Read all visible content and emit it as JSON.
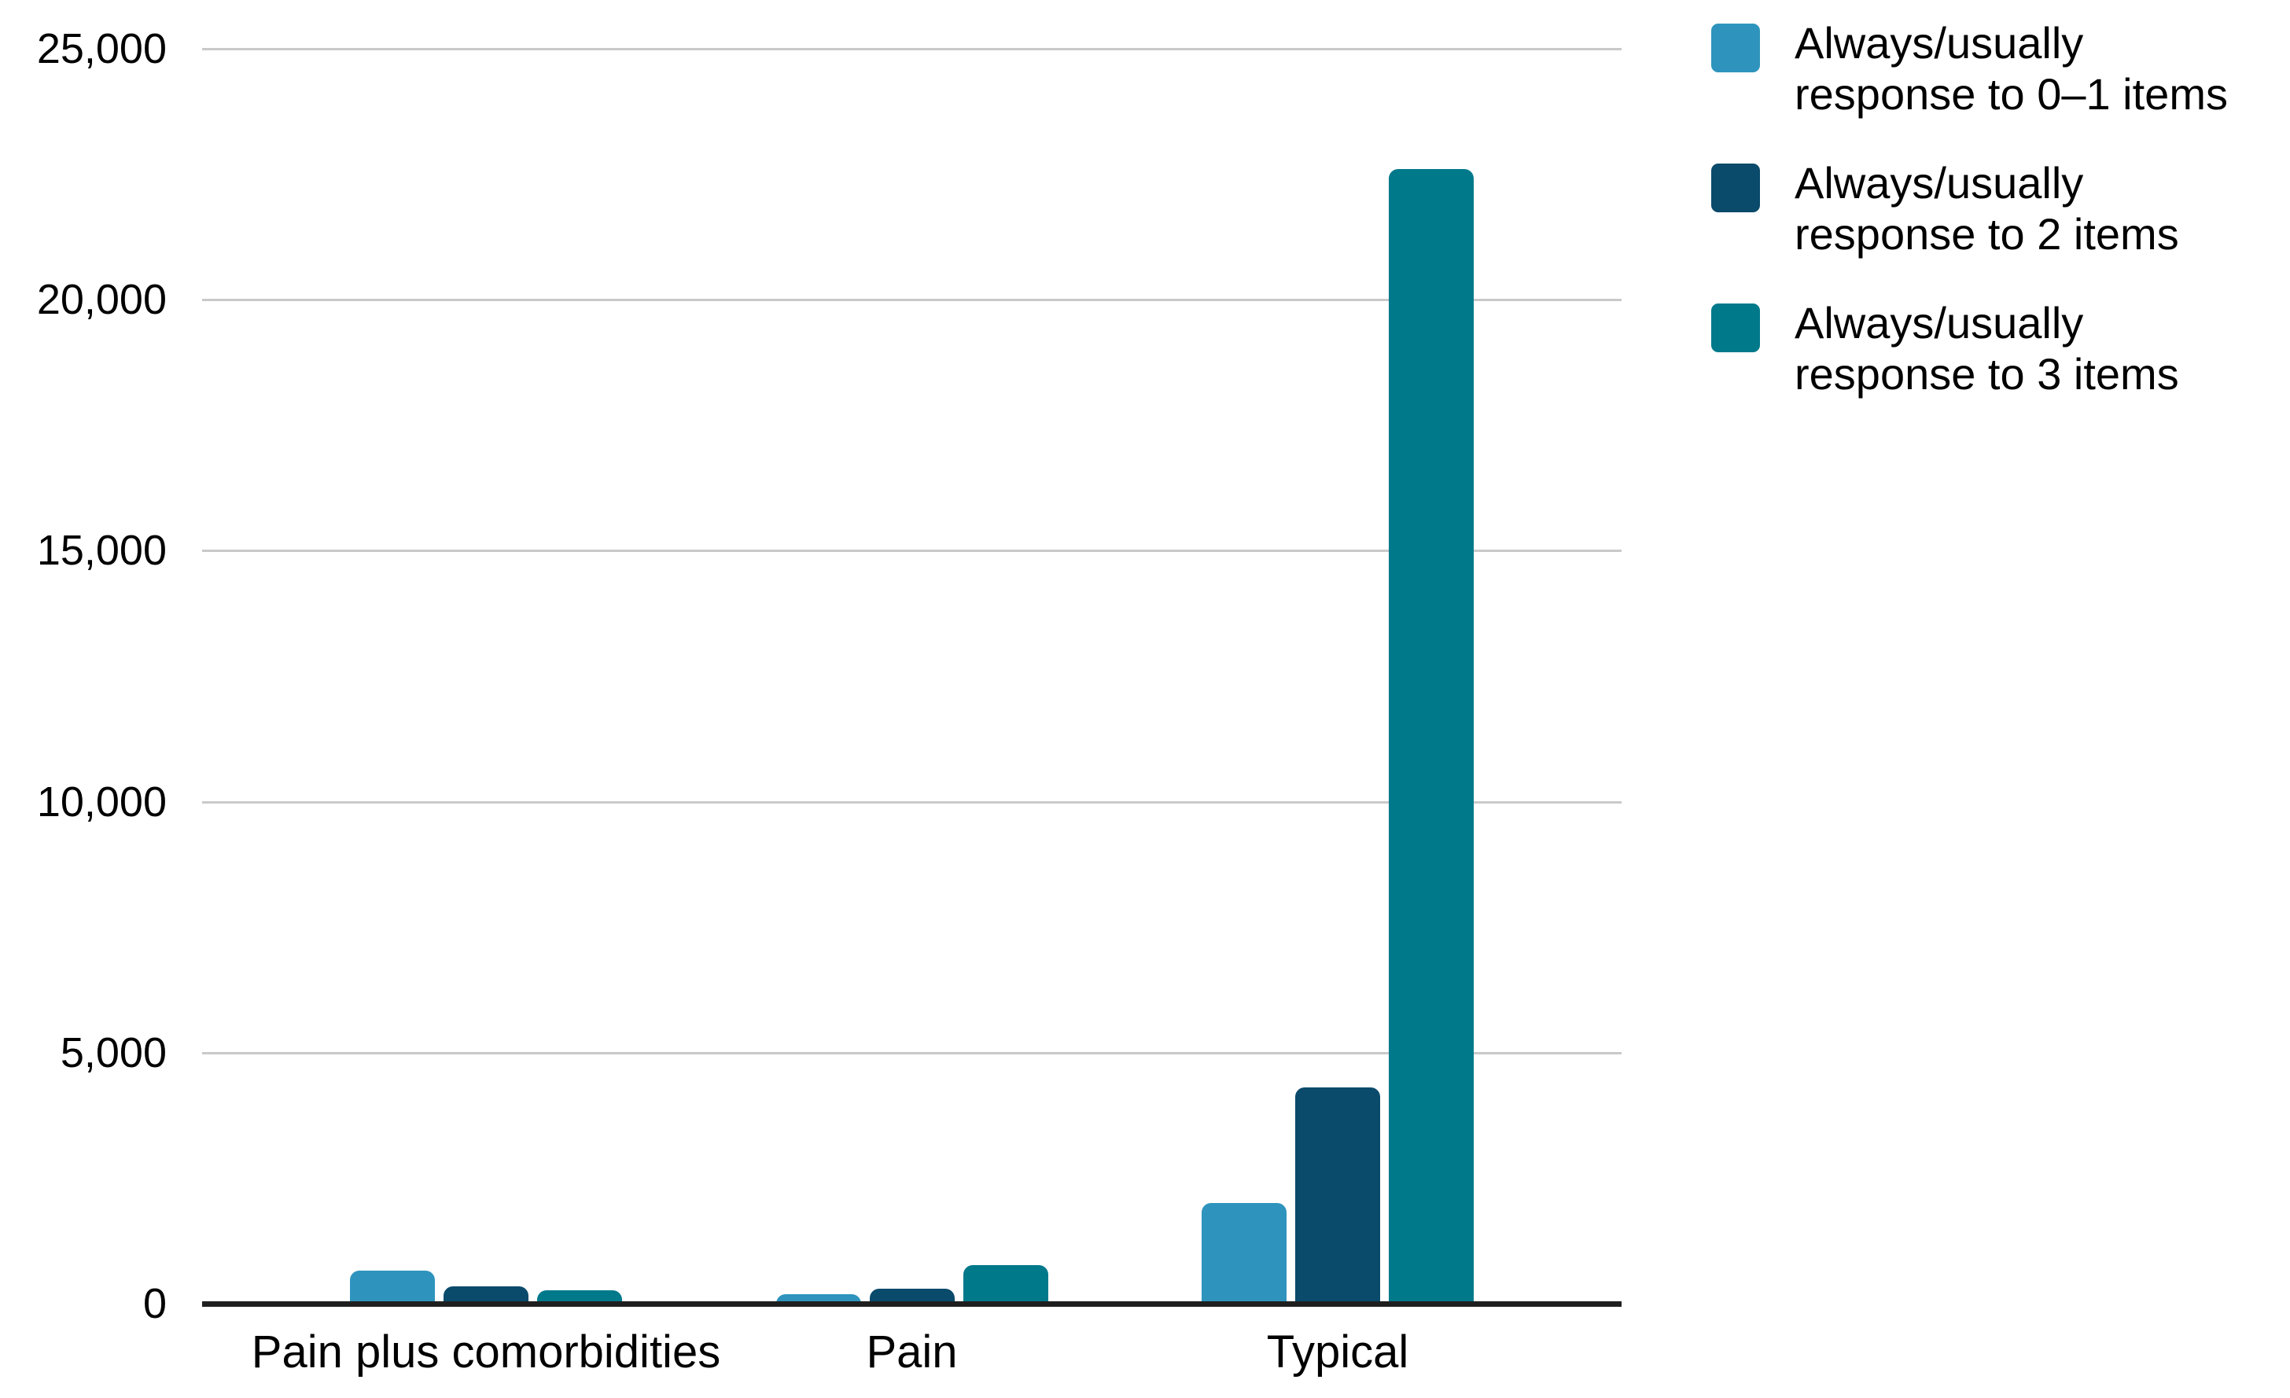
{
  "chart_data": {
    "type": "bar",
    "categories": [
      "Pain plus comorbidities",
      "Pain",
      "Typical"
    ],
    "series": [
      {
        "name": "Always/usually response to 0–1 items",
        "legend_lines": [
          "Always/usually",
          "response to 0–1 items"
        ],
        "color": "#2E94BD",
        "values": [
          660,
          190,
          2000
        ]
      },
      {
        "name": "Always/usually response to 2 items",
        "legend_lines": [
          "Always/usually",
          "response to 2 items"
        ],
        "color": "#0A4A6B",
        "values": [
          340,
          290,
          4300
        ]
      },
      {
        "name": "Always/usually response to 3 items",
        "legend_lines": [
          "Always/usually",
          "response to 3 items"
        ],
        "color": "#00798B",
        "values": [
          260,
          760,
          22600
        ]
      }
    ],
    "title": "",
    "xlabel": "",
    "ylabel": "",
    "ylim": [
      0,
      25000
    ],
    "yticks": [
      0,
      5000,
      10000,
      15000,
      20000,
      25000
    ],
    "ytick_labels": [
      "0",
      "5,000",
      "10,000",
      "15,000",
      "20,000",
      "25,000"
    ],
    "grid": true,
    "legend_position": "right",
    "axis_color": "#1f1f1f",
    "gridline_color": "#c9c9c9",
    "text_color": "#000000",
    "background_color": "#ffffff"
  }
}
